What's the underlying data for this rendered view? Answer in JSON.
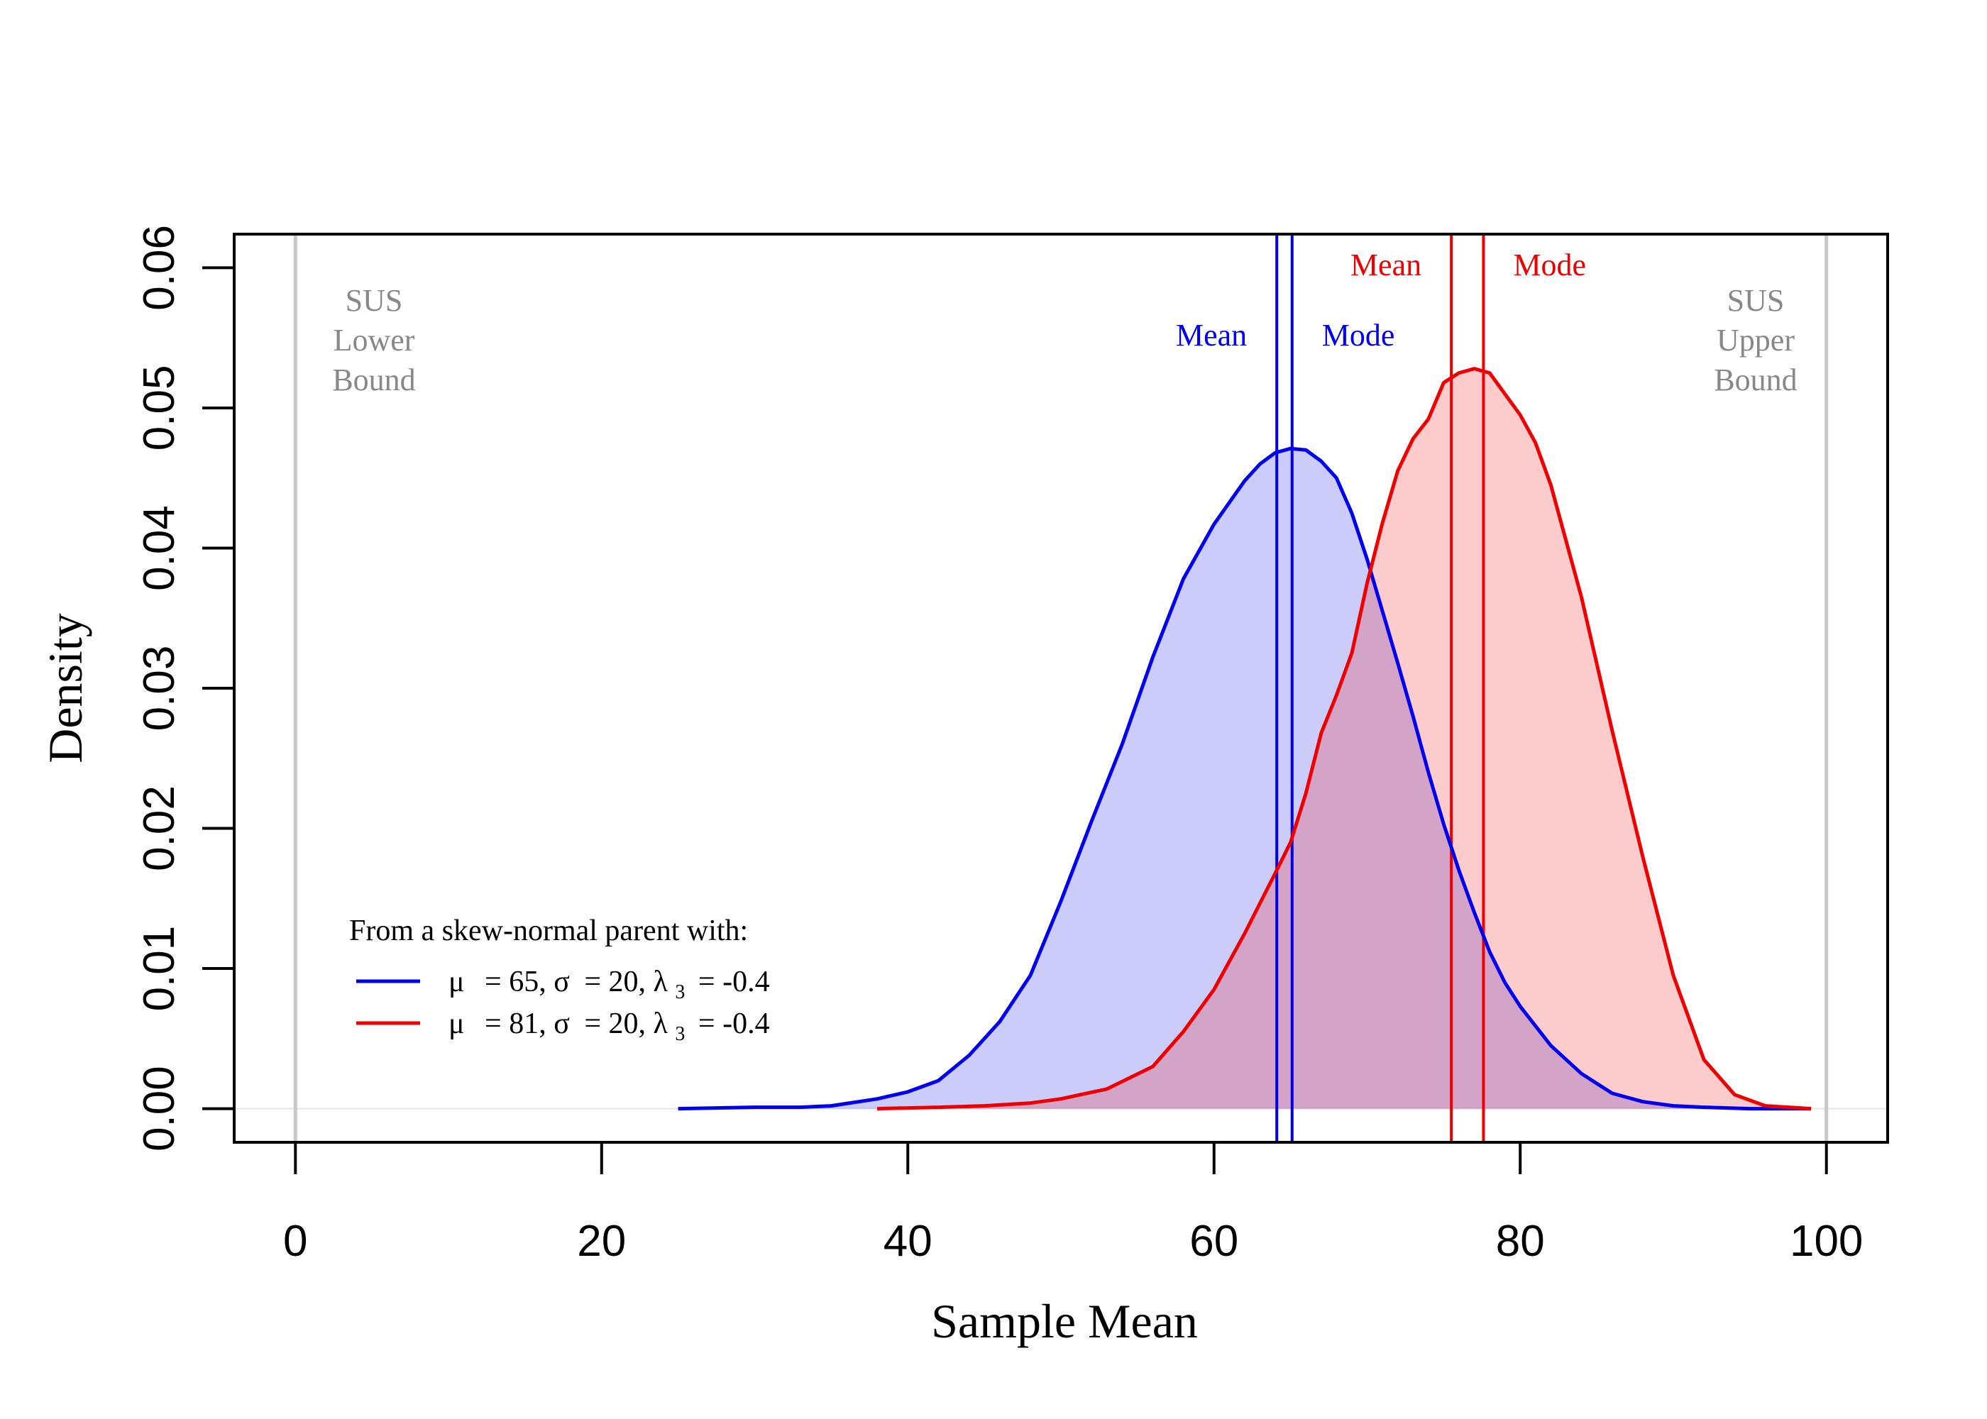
{
  "chart_data": {
    "type": "area",
    "title": "",
    "xlabel": "Sample Mean",
    "ylabel": "Density",
    "xlim": [
      -4,
      104
    ],
    "ylim": [
      -0.0024,
      0.0624
    ],
    "xticks": [
      0,
      20,
      40,
      60,
      80,
      100
    ],
    "xtick_labels": [
      "0",
      "20",
      "40",
      "60",
      "80",
      "100"
    ],
    "yticks": [
      0.0,
      0.01,
      0.02,
      0.03,
      0.04,
      0.05,
      0.06
    ],
    "ytick_labels": [
      "0.00",
      "0.01",
      "0.02",
      "0.03",
      "0.04",
      "0.05",
      "0.06"
    ],
    "grid": false,
    "colors": {
      "blue": "#0000ee",
      "red": "#ee0000",
      "blue_fill": "rgba(0,0,230,0.2)",
      "red_fill": "rgba(240,0,0,0.2)",
      "bound": "#c8c8c8",
      "bound_text": "#888888"
    },
    "series": [
      {
        "name": "μ = 65, σ = 20, λ3 = -0.4",
        "color": "#0000ee",
        "x": [
          25,
          30,
          33,
          35,
          38,
          40,
          42,
          44,
          46,
          48,
          50,
          52,
          54,
          56,
          58,
          60,
          62,
          63,
          64,
          65,
          66,
          67,
          68,
          69,
          70,
          71,
          72,
          73,
          74,
          75,
          76,
          77,
          78,
          79,
          80,
          82,
          84,
          86,
          88,
          90,
          92,
          95,
          99
        ],
        "y": [
          0.0,
          0.0001,
          0.0001,
          0.0002,
          0.0007,
          0.0012,
          0.002,
          0.0038,
          0.0062,
          0.0095,
          0.0148,
          0.0205,
          0.026,
          0.0322,
          0.0378,
          0.0417,
          0.0448,
          0.046,
          0.0468,
          0.0471,
          0.047,
          0.0462,
          0.045,
          0.0425,
          0.0392,
          0.0355,
          0.0318,
          0.028,
          0.024,
          0.0203,
          0.017,
          0.014,
          0.0112,
          0.009,
          0.0073,
          0.0045,
          0.0025,
          0.0011,
          0.0005,
          0.0002,
          0.0001,
          0.0,
          0.0
        ]
      },
      {
        "name": "μ = 81, σ = 20, λ3 = -0.4",
        "color": "#ee0000",
        "x": [
          38,
          42,
          45,
          48,
          50,
          53,
          56,
          58,
          60,
          62,
          64,
          65,
          66,
          67,
          68,
          69,
          70,
          71,
          72,
          73,
          74,
          75,
          76,
          77,
          78,
          79,
          80,
          81,
          82,
          84,
          86,
          88,
          90,
          92,
          94,
          96,
          99
        ],
        "y": [
          0.0,
          0.0001,
          0.0002,
          0.0004,
          0.0007,
          0.0014,
          0.003,
          0.0055,
          0.0085,
          0.0125,
          0.0168,
          0.019,
          0.0225,
          0.0268,
          0.0295,
          0.0325,
          0.0375,
          0.0418,
          0.0455,
          0.0478,
          0.0492,
          0.0518,
          0.0525,
          0.0528,
          0.0525,
          0.051,
          0.0495,
          0.0475,
          0.0445,
          0.0365,
          0.027,
          0.018,
          0.0095,
          0.0035,
          0.001,
          0.0002,
          0.0
        ]
      }
    ],
    "vertical_lines": [
      {
        "x": 0,
        "color": "#c8c8c8",
        "label_lines": [
          "SUS",
          "Lower",
          "Bound"
        ]
      },
      {
        "x": 100,
        "color": "#c8c8c8",
        "label_lines": [
          "SUS",
          "Upper",
          "Bound"
        ]
      },
      {
        "x": 64.1,
        "color": "#0000ee",
        "label": "Mean"
      },
      {
        "x": 65.1,
        "color": "#0000ee",
        "label": "Mode"
      },
      {
        "x": 75.5,
        "color": "#ee0000",
        "label": "Mean"
      },
      {
        "x": 77.6,
        "color": "#ee0000",
        "label": "Mode"
      }
    ],
    "legend": {
      "title": "From a skew-normal parent with:",
      "position": "bottom-left",
      "entries": [
        {
          "color": "#0000ee",
          "mu_symbol": "μ",
          "mu_text": "= 65, ",
          "sigma_symbol": "σ",
          "sigma_text": "= 20, ",
          "lambda_symbol": "λ",
          "lambda_sub": "3",
          "lambda_text": "= -0.4"
        },
        {
          "color": "#ee0000",
          "mu_symbol": "μ",
          "mu_text": "= 81, ",
          "sigma_symbol": "σ",
          "sigma_text": "= 20, ",
          "lambda_symbol": "λ",
          "lambda_sub": "3",
          "lambda_text": "= -0.4"
        }
      ]
    }
  }
}
